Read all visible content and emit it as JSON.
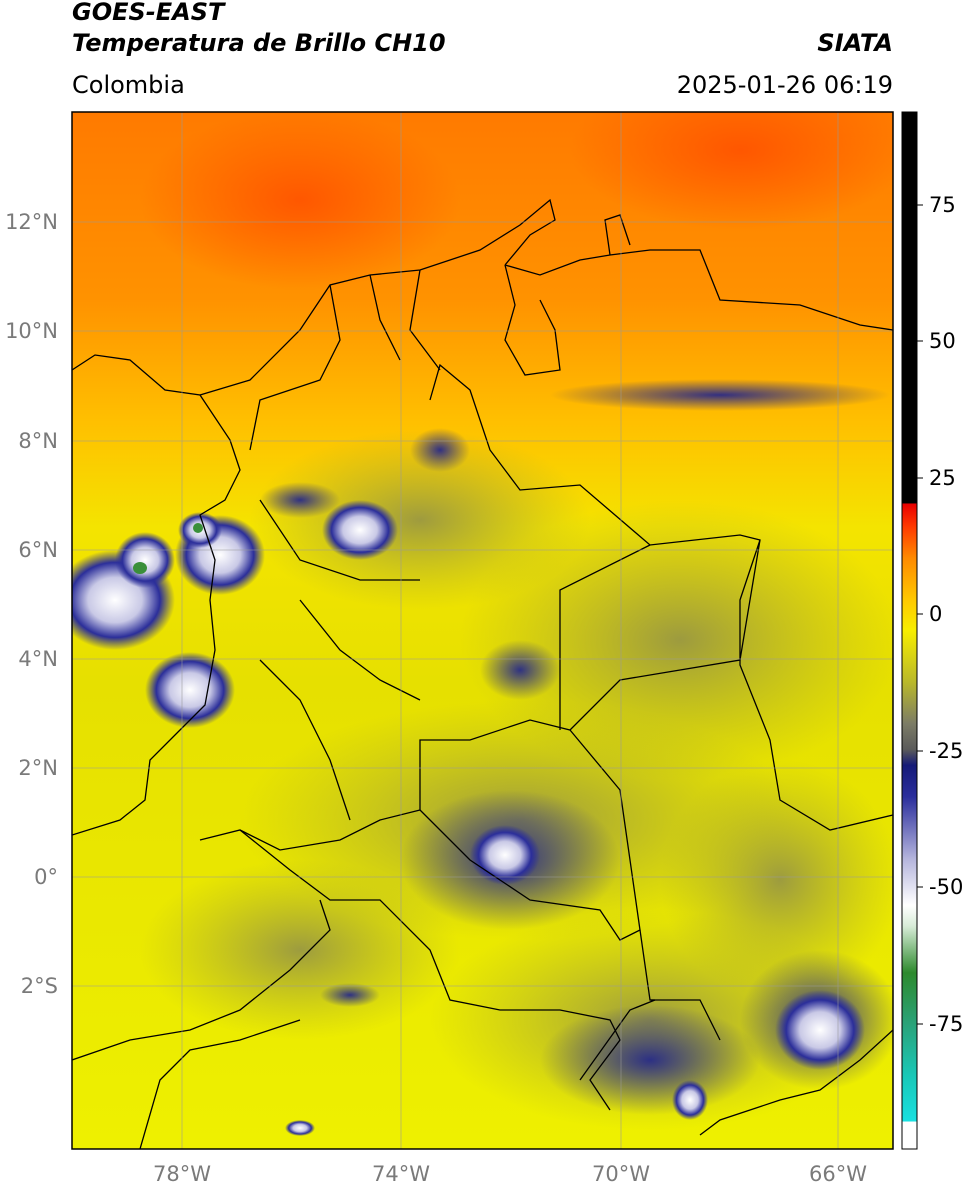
{
  "header": {
    "satellite": "GOES-EAST",
    "product": "Temperatura de Brillo CH10",
    "brand": "SIATA",
    "region": "Colombia",
    "timestamp": "2025-01-26 06:19"
  },
  "map": {
    "lon_range": [
      -80,
      -65
    ],
    "lat_range": [
      -4.6,
      14.1
    ],
    "lon_ticks": [
      {
        "value": -78,
        "label": "78°W"
      },
      {
        "value": -74,
        "label": "74°W"
      },
      {
        "value": -70,
        "label": "70°W"
      },
      {
        "value": -66,
        "label": "66°W"
      }
    ],
    "lat_ticks": [
      {
        "value": 12,
        "label": "12°N"
      },
      {
        "value": 10,
        "label": "10°N"
      },
      {
        "value": 8,
        "label": "8°N"
      },
      {
        "value": 6,
        "label": "6°N"
      },
      {
        "value": 4,
        "label": "4°N"
      },
      {
        "value": 2,
        "label": "2°N"
      },
      {
        "value": 0,
        "label": "0°"
      },
      {
        "value": -2,
        "label": "2°S"
      }
    ],
    "grid": true
  },
  "colorbar": {
    "range": [
      -95,
      90
    ],
    "ticks": [
      {
        "value": 75,
        "label": "75"
      },
      {
        "value": 50,
        "label": "50"
      },
      {
        "value": 25,
        "label": "25"
      },
      {
        "value": 0,
        "label": "0"
      },
      {
        "value": -25,
        "label": "-25"
      },
      {
        "value": -50,
        "label": "-50"
      },
      {
        "value": -75,
        "label": "-75"
      }
    ]
  },
  "colors": {
    "warm_orange": "#ff6a00",
    "orange": "#ff9800",
    "yellow": "#f2ea00",
    "olive": "#b5b51c",
    "gray": "#7f7f5a",
    "navy": "#1a1f8c",
    "white": "#ffffff",
    "green": "#3a8f3a",
    "cyan": "#19d3c5"
  }
}
